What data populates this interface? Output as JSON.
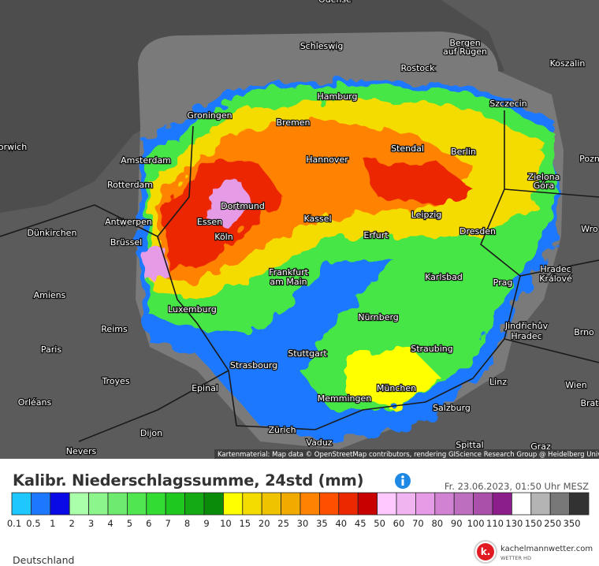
{
  "map": {
    "cities": [
      "Schleswig",
      "Rostock",
      "Bergen",
      "auf Rügen",
      "Koszalin",
      "Hamburg",
      "Szczecin",
      "Groningen",
      "Bremen",
      "Stendal",
      "Berlin",
      "Amsterdam",
      "Hannover",
      "Zielona",
      "Góra",
      "Rotterdam",
      "Dortmund",
      "Leipzig",
      "Kassel",
      "Essen",
      "Antwerpen",
      "Dünkirchen",
      "Köln",
      "Erfurt",
      "Dresden",
      "Brüssel",
      "Frankfurt",
      "am Main",
      "Karlsbad",
      "Hradec",
      "Králové",
      "Prag",
      "Amiens",
      "Luxemburg",
      "Nürnberg",
      "Reims",
      "Jindřichův",
      "Hradec",
      "Brno",
      "Paris",
      "Stuttgart",
      "Straubing",
      "Strasbourg",
      "Troyes",
      "Linz",
      "Wien",
      "München",
      "Epinal",
      "Memmingen",
      "Orléans",
      "Salzburg",
      "Dijon",
      "Zürich",
      "Vaduz",
      "Spittal",
      "Nevers",
      "Graz",
      "orwich",
      "Pozn",
      "Wro",
      "Brat",
      "Odense"
    ],
    "attribution": "Kartenmaterial: Map data © OpenStreetMap contributors, rendering GIScience Research Group @ Heidelberg University"
  },
  "header": {
    "title": "Kalibr. Niederschlagssumme, 24std (mm)",
    "timestamp": "Fr. 23.06.2023, 01:50 Uhr MESZ"
  },
  "legend": {
    "items": [
      {
        "label": "0.1",
        "color": "#1ec8ff"
      },
      {
        "label": "0.5",
        "color": "#1e78ff"
      },
      {
        "label": "1",
        "color": "#0a0ae6"
      },
      {
        "label": "2",
        "color": "#aaffaa"
      },
      {
        "label": "3",
        "color": "#8cf58c"
      },
      {
        "label": "4",
        "color": "#6eeb6e"
      },
      {
        "label": "5",
        "color": "#50e650"
      },
      {
        "label": "6",
        "color": "#32dc32"
      },
      {
        "label": "7",
        "color": "#1ec81e"
      },
      {
        "label": "8",
        "color": "#14aa14"
      },
      {
        "label": "9",
        "color": "#0a8c0a"
      },
      {
        "label": "10",
        "color": "#ffff00"
      },
      {
        "label": "15",
        "color": "#f5dc00"
      },
      {
        "label": "20",
        "color": "#f0c300"
      },
      {
        "label": "25",
        "color": "#f0aa00"
      },
      {
        "label": "30",
        "color": "#ff8200"
      },
      {
        "label": "35",
        "color": "#ff5000"
      },
      {
        "label": "40",
        "color": "#eb2800"
      },
      {
        "label": "45",
        "color": "#c80000"
      },
      {
        "label": "50",
        "color": "#ffc8ff"
      },
      {
        "label": "60",
        "color": "#f0b4f0"
      },
      {
        "label": "70",
        "color": "#e69be6"
      },
      {
        "label": "80",
        "color": "#d282d2"
      },
      {
        "label": "90",
        "color": "#be6ebe"
      },
      {
        "label": "100",
        "color": "#aa50aa"
      },
      {
        "label": "110",
        "color": "#8c1e8c"
      },
      {
        "label": "130",
        "color": "#ffffff"
      },
      {
        "label": "150",
        "color": "#b4b4b4"
      },
      {
        "label": "250",
        "color": "#787878"
      },
      {
        "label": "350",
        "color": "#323232"
      }
    ]
  },
  "footer": {
    "region": "Deutschland",
    "logo_mark": "k.",
    "brand": "kachelmannwetter.com",
    "brand_sub": "WETTER HD"
  }
}
